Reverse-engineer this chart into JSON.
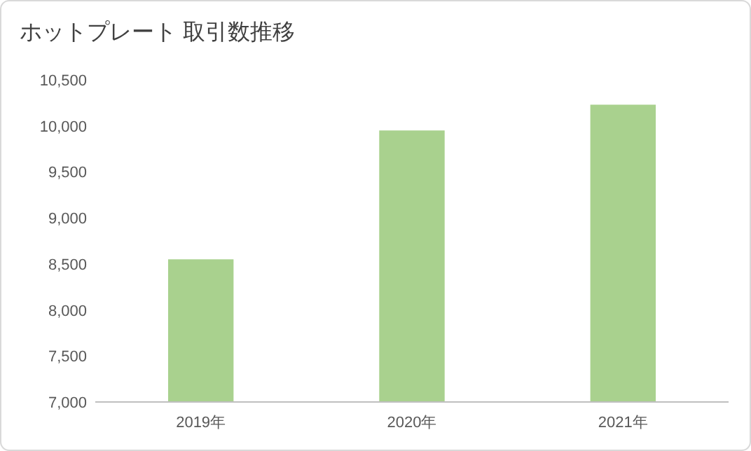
{
  "chart_data": {
    "type": "bar",
    "title": "ホットプレート 取引数推移",
    "categories": [
      "2019年",
      "2020年",
      "2021年"
    ],
    "values": [
      8550,
      9950,
      10230
    ],
    "color": "#a9d18e",
    "ylim": [
      7000,
      10500
    ],
    "yticks": [
      {
        "value": 7000,
        "label": "7,000"
      },
      {
        "value": 7500,
        "label": "7,500"
      },
      {
        "value": 8000,
        "label": "8,000"
      },
      {
        "value": 8500,
        "label": "8,500"
      },
      {
        "value": 9000,
        "label": "9,000"
      },
      {
        "value": 9500,
        "label": "9,500"
      },
      {
        "value": 10000,
        "label": "10,000"
      },
      {
        "value": 10500,
        "label": "10,500"
      }
    ]
  }
}
